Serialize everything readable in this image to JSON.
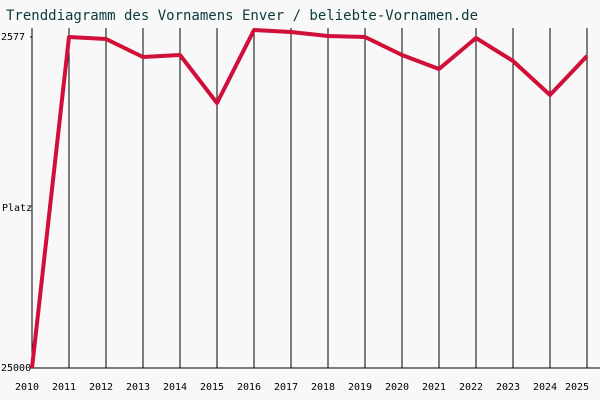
{
  "chart_data": {
    "type": "line",
    "title": "Trenddiagramm des Vornamens Enver / beliebte-Vornamen.de",
    "y_label": "Platz",
    "categories": [
      "2010",
      "2011",
      "2012",
      "2013",
      "2014",
      "2015",
      "2016",
      "2017",
      "2018",
      "2019",
      "2020",
      "2021",
      "2022",
      "2023",
      "2024",
      "2025"
    ],
    "series": [
      {
        "name": "Enver",
        "color": "#d0103a",
        "values": [
          25000,
          2577,
          2713,
          3932,
          3797,
          7049,
          2103,
          2238,
          2509,
          2577,
          3797,
          4745,
          2645,
          4203,
          6507,
          3864
        ]
      }
    ],
    "ylim": [
      25000,
      2577
    ],
    "yticks": [
      2577,
      25000
    ],
    "grid": true
  }
}
